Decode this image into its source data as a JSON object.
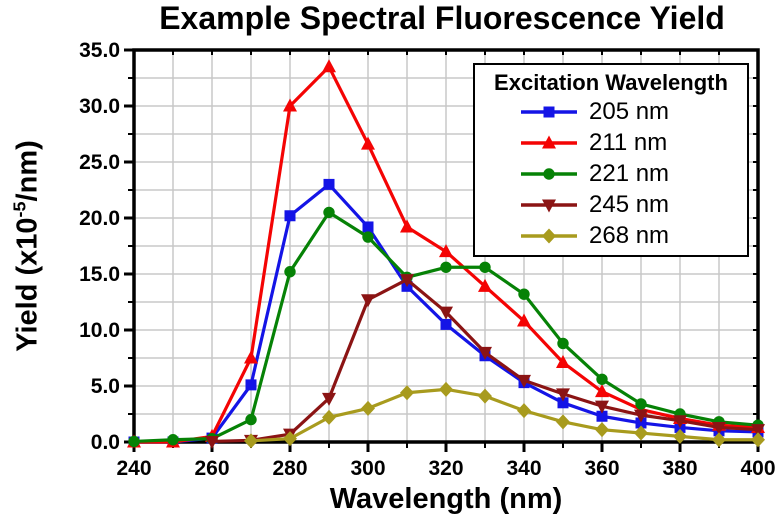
{
  "figure": {
    "background": "#FFFFFF"
  },
  "chart_data": {
    "type": "line",
    "title": "Example Spectral Fluorescence Yield",
    "xlabel": "Wavelength (nm)",
    "ylabel": "Yield (x10^-5/nm)",
    "ylabel_parts": {
      "prefix": "Yield (x10",
      "superscript": "-5",
      "suffix": "/nm)"
    },
    "xlim": [
      240,
      400
    ],
    "ylim": [
      0,
      35
    ],
    "x_major_ticks": [
      240,
      260,
      280,
      300,
      320,
      340,
      360,
      380,
      400
    ],
    "x_major_tick_labels": [
      "240",
      "260",
      "280",
      "300",
      "320",
      "340",
      "360",
      "380",
      "400"
    ],
    "x_minor_step": 10,
    "y_major_ticks": [
      0,
      5,
      10,
      15,
      20,
      25,
      30,
      35
    ],
    "y_major_tick_labels": [
      "0.0",
      "5.0",
      "10.0",
      "15.0",
      "20.0",
      "25.0",
      "30.0",
      "35.0"
    ],
    "y_minor_step": 2.5,
    "grid": true,
    "grid_color": "#C8C8C8",
    "axis_color": "#000000",
    "text_color": "#000000",
    "legend_title": "Excitation Wavelength",
    "legend_position": "top-right",
    "x": [
      240,
      250,
      260,
      270,
      280,
      290,
      300,
      310,
      320,
      330,
      340,
      350,
      360,
      370,
      380,
      390,
      400
    ],
    "series": [
      {
        "name": "205 nm",
        "color": "#1414E6",
        "marker": "square",
        "values": [
          0.0,
          0.0,
          0.35,
          5.1,
          20.2,
          23.0,
          19.2,
          13.9,
          10.5,
          7.7,
          5.3,
          3.5,
          2.3,
          1.7,
          1.3,
          1.0,
          0.9
        ]
      },
      {
        "name": "211 nm",
        "color": "#F40404",
        "marker": "triangle-up",
        "values": [
          0.0,
          0.0,
          0.5,
          7.5,
          30.0,
          33.5,
          26.6,
          19.2,
          17.0,
          13.9,
          10.8,
          7.1,
          4.5,
          2.9,
          2.1,
          1.5,
          1.3
        ]
      },
      {
        "name": "221 nm",
        "color": "#068206",
        "marker": "circle",
        "values": [
          0.05,
          0.2,
          0.3,
          2.0,
          15.2,
          20.5,
          18.3,
          14.7,
          15.6,
          15.6,
          13.2,
          8.8,
          5.6,
          3.4,
          2.5,
          1.8,
          1.5
        ]
      },
      {
        "name": "245 nm",
        "color": "#8B1414",
        "marker": "triangle-down",
        "values": [
          null,
          null,
          0.05,
          0.15,
          0.7,
          3.9,
          12.7,
          14.5,
          11.6,
          8.0,
          5.5,
          4.3,
          3.2,
          2.4,
          1.9,
          1.3,
          1.1
        ]
      },
      {
        "name": "268 nm",
        "color": "#A89B1E",
        "marker": "diamond",
        "values": [
          null,
          null,
          null,
          0.1,
          0.3,
          2.2,
          3.0,
          4.4,
          4.7,
          4.1,
          2.8,
          1.8,
          1.1,
          0.8,
          0.5,
          0.2,
          0.2
        ]
      }
    ]
  }
}
